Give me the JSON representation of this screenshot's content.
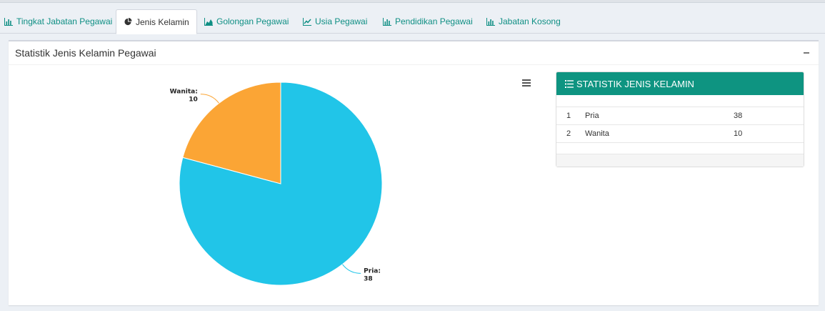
{
  "tabs": [
    {
      "label": "Tingkat Jabatan Pegawai",
      "icon": "bar-chart-icon",
      "active": false
    },
    {
      "label": "Jenis Kelamin",
      "icon": "pie-chart-icon",
      "active": true
    },
    {
      "label": "Golongan Pegawai",
      "icon": "area-chart-icon",
      "active": false
    },
    {
      "label": "Usia Pegawai",
      "icon": "line-chart-icon",
      "active": false
    },
    {
      "label": "Pendidikan Pegawai",
      "icon": "bar-chart-icon",
      "active": false
    },
    {
      "label": "Jabatan Kosong",
      "icon": "bar-chart-icon",
      "active": false
    }
  ],
  "box": {
    "title": "Statistik Jenis Kelamin Pegawai"
  },
  "chart_data": {
    "type": "pie",
    "categories": [
      "Pria",
      "Wanita"
    ],
    "values": [
      38,
      10
    ],
    "colors": [
      "#21c5e8",
      "#fba535"
    ],
    "data_labels": [
      "Pria:",
      "Wanita:"
    ]
  },
  "panel": {
    "title": "STATISTIK JENIS KELAMIN",
    "rows": [
      {
        "no": "1",
        "name": "Pria",
        "value": "38"
      },
      {
        "no": "2",
        "name": "Wanita",
        "value": "10"
      }
    ]
  },
  "colors": {
    "accent": "#0e9481",
    "tab_text": "#0f8f84"
  }
}
